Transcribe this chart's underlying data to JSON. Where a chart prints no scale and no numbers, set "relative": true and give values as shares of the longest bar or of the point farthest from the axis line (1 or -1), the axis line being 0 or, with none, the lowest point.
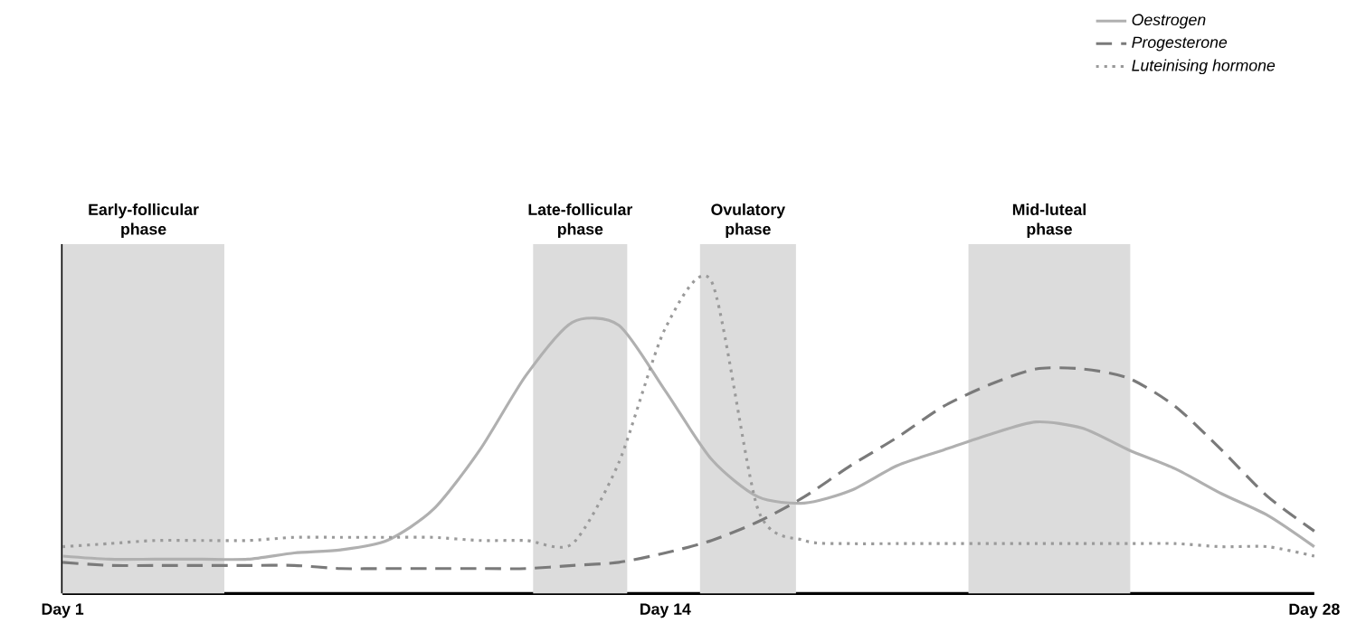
{
  "chart_data": {
    "type": "line",
    "relative": true,
    "legend": "top right",
    "tick_labels": "x",
    "categories": [
      "Day 1",
      null,
      null,
      null,
      null,
      null,
      null,
      null,
      null,
      null,
      null,
      null,
      null,
      "Day 14",
      null,
      null,
      null,
      null,
      null,
      null,
      null,
      null,
      null,
      null,
      null,
      null,
      null,
      "Day 28"
    ],
    "annotations": [
      "Early-follicular phase",
      "Late-follicular phase",
      "Ovulatory phase",
      "Mid-luteal phase"
    ],
    "series": [
      {
        "name": "Oestrogen",
        "color": "#b0b0b0",
        "line_style": "solid",
        "values": [
          0.12,
          0.11,
          0.11,
          0.11,
          0.11,
          0.13,
          0.14,
          0.17,
          0.27,
          0.46,
          0.7,
          0.87,
          0.86,
          0.65,
          0.43,
          0.31,
          0.29,
          0.33,
          0.41,
          0.46,
          0.51,
          0.55,
          0.53,
          0.46,
          0.4,
          0.32,
          0.25,
          0.15
        ]
      },
      {
        "name": "Progesterone",
        "color": "#7a7a7a",
        "line_style": "dashed",
        "values": [
          0.1,
          0.09,
          0.09,
          0.09,
          0.09,
          0.09,
          0.08,
          0.08,
          0.08,
          0.08,
          0.08,
          0.09,
          0.1,
          0.13,
          0.17,
          0.23,
          0.31,
          0.41,
          0.5,
          0.6,
          0.67,
          0.72,
          0.72,
          0.69,
          0.6,
          0.46,
          0.31,
          0.2
        ]
      },
      {
        "name": "Luteinising hormone",
        "color": "#9a9a9a",
        "line_style": "dotted",
        "values": [
          0.15,
          0.16,
          0.17,
          0.17,
          0.17,
          0.18,
          0.18,
          0.18,
          0.18,
          0.17,
          0.17,
          0.16,
          0.42,
          0.85,
          1,
          0.27,
          0.17,
          0.16,
          0.16,
          0.16,
          0.16,
          0.16,
          0.16,
          0.16,
          0.16,
          0.15,
          0.15,
          0.12
        ]
      }
    ]
  }
}
